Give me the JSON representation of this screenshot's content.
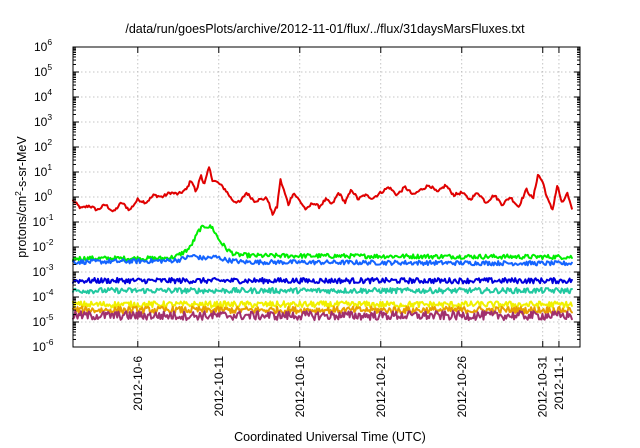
{
  "chart_data": {
    "type": "line",
    "title": "/data/run/goesPlots/archive/2012-11-01/flux/../flux/31daysMarsFluxes.txt",
    "xlabel": "Coordinated Universal Time (UTC)",
    "ylabel": {
      "base": "protons/cm",
      "sup": "2",
      "rest": "-s-sr-MeV"
    },
    "y_scale": "log",
    "grid": true,
    "x_range": [
      "2012-10-02",
      "2012-11-03"
    ],
    "y_exponent_range": [
      -6,
      6
    ],
    "x_ticks": [
      "2012-10-6",
      "2012-10-11",
      "2012-10-16",
      "2012-10-21",
      "2012-10-26",
      "2012-10-31",
      "2012-11-1"
    ],
    "x_tick_days": [
      4,
      9,
      14,
      19,
      24,
      29,
      30
    ],
    "y_ticks": [
      {
        "base": "10",
        "exp": "-6",
        "value": -6
      },
      {
        "base": "10",
        "exp": "-5",
        "value": -5
      },
      {
        "base": "10",
        "exp": "-4",
        "value": -4
      },
      {
        "base": "10",
        "exp": "-3",
        "value": -3
      },
      {
        "base": "10",
        "exp": "-2",
        "value": -2
      },
      {
        "base": "10",
        "exp": "-1",
        "value": -1
      },
      {
        "base": "10",
        "exp": "0",
        "value": 0
      },
      {
        "base": "10",
        "exp": "1",
        "value": 1
      },
      {
        "base": "10",
        "exp": "2",
        "value": 2
      },
      {
        "base": "10",
        "exp": "3",
        "value": 3
      },
      {
        "base": "10",
        "exp": "4",
        "value": 4
      },
      {
        "base": "10",
        "exp": "5",
        "value": 5
      },
      {
        "base": "10",
        "exp": "6",
        "value": 6
      }
    ],
    "series": [
      {
        "color": "#e00000",
        "noise": 0.06,
        "points": [
          [
            0,
            0.7
          ],
          [
            0.5,
            0.35
          ],
          [
            1.0,
            0.45
          ],
          [
            1.5,
            0.3
          ],
          [
            2.0,
            0.5
          ],
          [
            2.5,
            0.25
          ],
          [
            3.0,
            0.6
          ],
          [
            3.5,
            0.3
          ],
          [
            4.0,
            0.8
          ],
          [
            4.5,
            0.6
          ],
          [
            5.0,
            1.2
          ],
          [
            5.5,
            1.0
          ],
          [
            6.0,
            1.5
          ],
          [
            6.5,
            1.3
          ],
          [
            7.0,
            2.0
          ],
          [
            7.3,
            5.0
          ],
          [
            7.6,
            1.5
          ],
          [
            7.9,
            8.0
          ],
          [
            8.1,
            3.0
          ],
          [
            8.4,
            15.0
          ],
          [
            8.6,
            5.0
          ],
          [
            9.0,
            3.5
          ],
          [
            9.4,
            2.0
          ],
          [
            9.7,
            1.0
          ],
          [
            9.9,
            0.7
          ],
          [
            10.3,
            0.6
          ],
          [
            10.7,
            1.5
          ],
          [
            11.2,
            0.7
          ],
          [
            11.6,
            0.8
          ],
          [
            12.0,
            0.9
          ],
          [
            12.3,
            0.2
          ],
          [
            12.6,
            0.4
          ],
          [
            12.8,
            5.0
          ],
          [
            13.0,
            2.0
          ],
          [
            13.3,
            0.5
          ],
          [
            13.6,
            1.5
          ],
          [
            14.0,
            0.7
          ],
          [
            14.4,
            0.3
          ],
          [
            14.8,
            0.6
          ],
          [
            15.2,
            0.4
          ],
          [
            15.6,
            0.8
          ],
          [
            16.0,
            0.5
          ],
          [
            16.4,
            1.5
          ],
          [
            16.8,
            0.6
          ],
          [
            17.2,
            2.0
          ],
          [
            17.6,
            0.8
          ],
          [
            18.0,
            1.2
          ],
          [
            18.5,
            0.9
          ],
          [
            19.0,
            1.5
          ],
          [
            19.5,
            2.5
          ],
          [
            20.0,
            1.2
          ],
          [
            20.5,
            2.5
          ],
          [
            21.0,
            1.2
          ],
          [
            21.5,
            2.0
          ],
          [
            22.0,
            3.0
          ],
          [
            22.5,
            1.5
          ],
          [
            23.0,
            3.0
          ],
          [
            23.5,
            1.2
          ],
          [
            24.0,
            1.5
          ],
          [
            24.5,
            0.8
          ],
          [
            25.0,
            1.5
          ],
          [
            25.5,
            0.6
          ],
          [
            26.0,
            1.2
          ],
          [
            26.5,
            0.5
          ],
          [
            27.0,
            1.0
          ],
          [
            27.5,
            0.4
          ],
          [
            28.0,
            2.0
          ],
          [
            28.4,
            0.8
          ],
          [
            28.7,
            8.0
          ],
          [
            29.0,
            4.0
          ],
          [
            29.3,
            0.8
          ],
          [
            29.6,
            0.3
          ],
          [
            29.9,
            3.0
          ],
          [
            30.2,
            0.5
          ],
          [
            30.5,
            1.5
          ],
          [
            30.8,
            0.3
          ]
        ]
      },
      {
        "color": "#00ee00",
        "noise": 0.09,
        "points": [
          [
            0,
            0.0035
          ],
          [
            5.5,
            0.0035
          ],
          [
            6.3,
            0.004
          ],
          [
            6.8,
            0.006
          ],
          [
            7.2,
            0.009
          ],
          [
            7.5,
            0.02
          ],
          [
            7.8,
            0.05
          ],
          [
            8.2,
            0.07
          ],
          [
            8.6,
            0.06
          ],
          [
            9.0,
            0.02
          ],
          [
            9.5,
            0.008
          ],
          [
            10.0,
            0.005
          ],
          [
            11.0,
            0.0045
          ],
          [
            30.8,
            0.004
          ]
        ]
      },
      {
        "color": "#1464ff",
        "noise": 0.09,
        "points": [
          [
            0,
            0.0025
          ],
          [
            5.8,
            0.0028
          ],
          [
            6.5,
            0.003
          ],
          [
            7.4,
            0.0045
          ],
          [
            8.0,
            0.0035
          ],
          [
            8.8,
            0.004
          ],
          [
            9.5,
            0.003
          ],
          [
            10.5,
            0.0025
          ],
          [
            30.8,
            0.0022
          ]
        ]
      },
      {
        "color": "#0000dd",
        "noise": 0.11,
        "points": [
          [
            0,
            0.00045
          ],
          [
            30.8,
            0.00045
          ]
        ]
      },
      {
        "color": "#20c8a0",
        "noise": 0.11,
        "points": [
          [
            0,
            0.00018
          ],
          [
            30.8,
            0.00018
          ]
        ]
      },
      {
        "color": "#f0f000",
        "noise": 0.13,
        "points": [
          [
            0,
            5e-05
          ],
          [
            30.8,
            5e-05
          ]
        ]
      },
      {
        "color": "#e8a000",
        "noise": 0.14,
        "points": [
          [
            0,
            3e-05
          ],
          [
            30.8,
            3e-05
          ]
        ]
      },
      {
        "color": "#a0306e",
        "noise": 0.18,
        "points": [
          [
            0,
            1.8e-05
          ],
          [
            30.8,
            1.8e-05
          ]
        ]
      }
    ]
  }
}
